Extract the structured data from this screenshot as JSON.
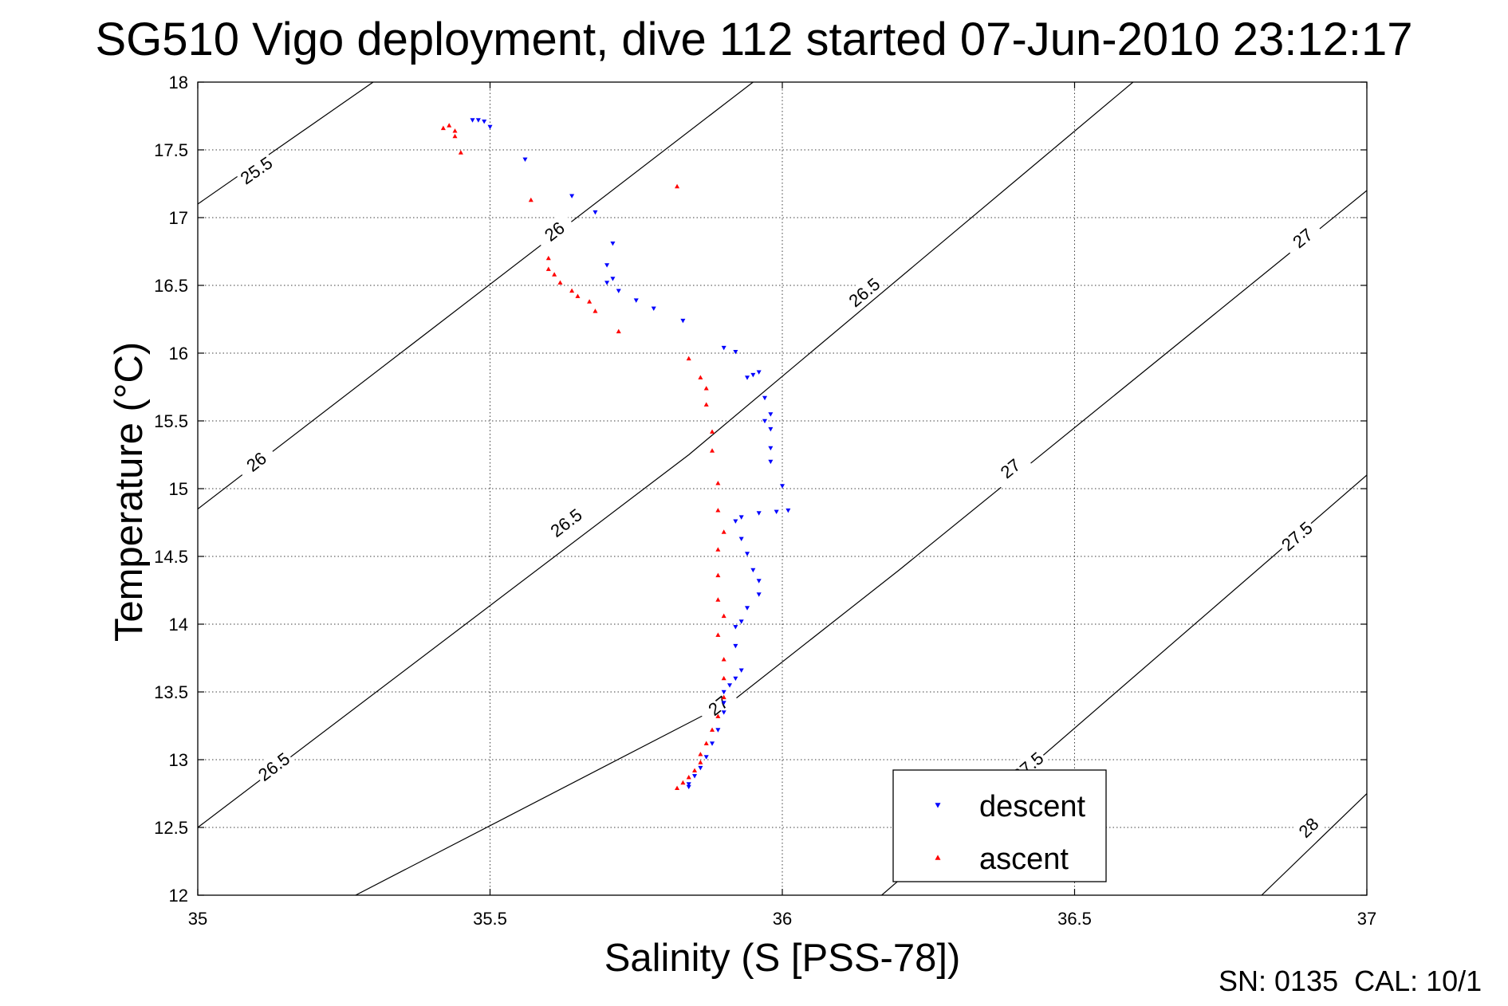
{
  "title": "SG510 Vigo deployment, dive 112 started 07-Jun-2010 23:12:17",
  "footer": "SN: 0135  CAL: 10/1",
  "chart_data": {
    "type": "scatter",
    "title": "SG510 Vigo deployment, dive 112 started 07-Jun-2010 23:12:17",
    "xlabel": "Salinity (S [PSS-78])",
    "ylabel": "Temperature (°C)",
    "xlim": [
      35,
      37
    ],
    "ylim": [
      12,
      18
    ],
    "grid": true,
    "xticks": [
      35,
      35.5,
      36,
      36.5,
      37
    ],
    "xtick_labels": [
      "35",
      "35.5",
      "36",
      "36.5",
      "37"
    ],
    "yticks": [
      12,
      12.5,
      13,
      13.5,
      14,
      14.5,
      15,
      15.5,
      16,
      16.5,
      17,
      17.5,
      18
    ],
    "ytick_labels": [
      "12",
      "12.5",
      "13",
      "13.5",
      "14",
      "14.5",
      "15",
      "15.5",
      "16",
      "16.5",
      "17",
      "17.5",
      "18"
    ],
    "legend": {
      "placement": "bottom-right",
      "entries": [
        "descent",
        "ascent"
      ]
    },
    "density_contours": [
      {
        "level": "25.5",
        "points": [
          [
            35.0,
            17.1
          ],
          [
            35.3,
            18.0
          ]
        ],
        "labels": [
          {
            "x": 35.1,
            "y": 17.35,
            "text": "25.5"
          }
        ]
      },
      {
        "level": "26",
        "points": [
          [
            35.0,
            14.85
          ],
          [
            35.95,
            18.0
          ]
        ],
        "labels": [
          {
            "x": 35.1,
            "y": 15.2,
            "text": "26"
          },
          {
            "x": 35.61,
            "y": 16.9,
            "text": "26"
          }
        ]
      },
      {
        "level": "26.5",
        "points": [
          [
            35.0,
            12.5
          ],
          [
            35.84,
            15.25
          ],
          [
            36.6,
            18.0
          ]
        ],
        "labels": [
          {
            "x": 35.13,
            "y": 12.95,
            "text": "26.5"
          },
          {
            "x": 35.63,
            "y": 14.75,
            "text": "26.5"
          },
          {
            "x": 36.14,
            "y": 16.45,
            "text": "26.5"
          }
        ]
      },
      {
        "level": "27",
        "points": [
          [
            35.27,
            12.0
          ],
          [
            35.92,
            13.45
          ],
          [
            36.2,
            14.4
          ],
          [
            37.0,
            17.2
          ]
        ],
        "labels": [
          {
            "x": 35.89,
            "y": 13.4,
            "text": "27"
          },
          {
            "x": 36.39,
            "y": 15.15,
            "text": "27"
          },
          {
            "x": 36.89,
            "y": 16.85,
            "text": "27"
          }
        ]
      },
      {
        "level": "27.5",
        "points": [
          [
            36.17,
            12.0
          ],
          [
            37.0,
            15.1
          ]
        ],
        "labels": [
          {
            "x": 36.42,
            "y": 12.95,
            "text": "27.5"
          },
          {
            "x": 36.88,
            "y": 14.65,
            "text": "27.5"
          }
        ]
      },
      {
        "level": "28",
        "points": [
          [
            36.82,
            12.0
          ],
          [
            37.0,
            12.75
          ]
        ],
        "labels": [
          {
            "x": 36.9,
            "y": 12.5,
            "text": "28"
          }
        ]
      }
    ],
    "series": [
      {
        "name": "descent",
        "color": "#0000ff",
        "marker": "triangle-down",
        "points": [
          [
            35.47,
            17.72
          ],
          [
            35.48,
            17.72
          ],
          [
            35.49,
            17.71
          ],
          [
            35.5,
            17.67
          ],
          [
            35.56,
            17.43
          ],
          [
            35.64,
            17.16
          ],
          [
            35.68,
            17.04
          ],
          [
            35.71,
            16.81
          ],
          [
            35.7,
            16.65
          ],
          [
            35.71,
            16.55
          ],
          [
            35.7,
            16.52
          ],
          [
            35.72,
            16.46
          ],
          [
            35.75,
            16.39
          ],
          [
            35.78,
            16.33
          ],
          [
            35.83,
            16.24
          ],
          [
            35.9,
            16.04
          ],
          [
            35.92,
            16.01
          ],
          [
            35.95,
            15.84
          ],
          [
            35.96,
            15.86
          ],
          [
            35.94,
            15.82
          ],
          [
            35.97,
            15.67
          ],
          [
            35.98,
            15.55
          ],
          [
            35.97,
            15.5
          ],
          [
            35.98,
            15.44
          ],
          [
            35.98,
            15.3
          ],
          [
            35.98,
            15.2
          ],
          [
            36.0,
            15.02
          ],
          [
            36.01,
            14.84
          ],
          [
            35.99,
            14.83
          ],
          [
            35.96,
            14.82
          ],
          [
            35.93,
            14.79
          ],
          [
            35.92,
            14.76
          ],
          [
            35.93,
            14.63
          ],
          [
            35.94,
            14.52
          ],
          [
            35.95,
            14.4
          ],
          [
            35.96,
            14.32
          ],
          [
            35.96,
            14.22
          ],
          [
            35.94,
            14.12
          ],
          [
            35.93,
            14.02
          ],
          [
            35.92,
            13.98
          ],
          [
            35.92,
            13.84
          ],
          [
            35.93,
            13.66
          ],
          [
            35.92,
            13.6
          ],
          [
            35.91,
            13.55
          ],
          [
            35.9,
            13.5
          ],
          [
            35.9,
            13.42
          ],
          [
            35.9,
            13.35
          ],
          [
            35.89,
            13.22
          ],
          [
            35.88,
            13.12
          ],
          [
            35.87,
            13.02
          ],
          [
            35.86,
            12.94
          ],
          [
            35.85,
            12.88
          ],
          [
            35.84,
            12.82
          ],
          [
            35.84,
            12.8
          ]
        ]
      },
      {
        "name": "ascent",
        "color": "#ff0000",
        "marker": "triangle-up",
        "points": [
          [
            35.42,
            17.66
          ],
          [
            35.43,
            17.68
          ],
          [
            35.44,
            17.64
          ],
          [
            35.44,
            17.6
          ],
          [
            35.45,
            17.48
          ],
          [
            35.57,
            17.13
          ],
          [
            35.82,
            17.23
          ],
          [
            35.6,
            16.7
          ],
          [
            35.6,
            16.62
          ],
          [
            35.61,
            16.58
          ],
          [
            35.62,
            16.52
          ],
          [
            35.64,
            16.46
          ],
          [
            35.65,
            16.42
          ],
          [
            35.67,
            16.38
          ],
          [
            35.68,
            16.31
          ],
          [
            35.72,
            16.16
          ],
          [
            35.84,
            15.96
          ],
          [
            35.86,
            15.82
          ],
          [
            35.87,
            15.74
          ],
          [
            35.87,
            15.62
          ],
          [
            35.88,
            15.42
          ],
          [
            35.88,
            15.28
          ],
          [
            35.89,
            15.04
          ],
          [
            35.89,
            14.84
          ],
          [
            35.9,
            14.68
          ],
          [
            35.89,
            14.55
          ],
          [
            35.89,
            14.36
          ],
          [
            35.89,
            14.18
          ],
          [
            35.9,
            14.06
          ],
          [
            35.89,
            13.92
          ],
          [
            35.9,
            13.74
          ],
          [
            35.9,
            13.6
          ],
          [
            35.9,
            13.46
          ],
          [
            35.89,
            13.32
          ],
          [
            35.88,
            13.22
          ],
          [
            35.87,
            13.12
          ],
          [
            35.86,
            13.04
          ],
          [
            35.86,
            12.98
          ],
          [
            35.85,
            12.92
          ],
          [
            35.84,
            12.87
          ],
          [
            35.83,
            12.83
          ],
          [
            35.82,
            12.79
          ]
        ]
      }
    ]
  }
}
